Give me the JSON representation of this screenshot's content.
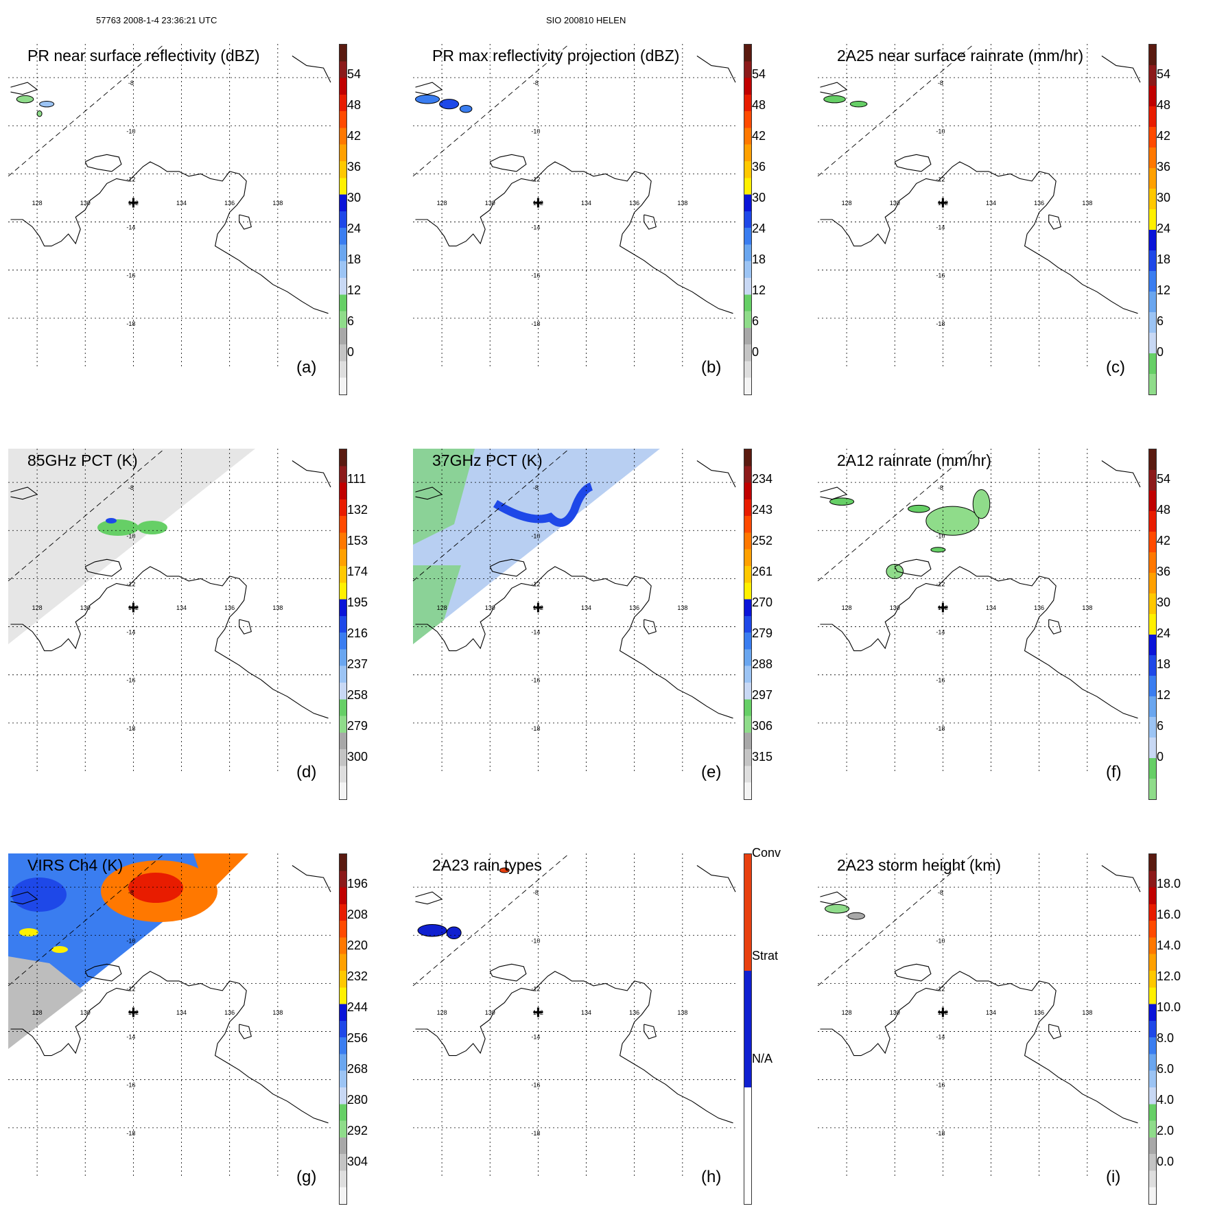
{
  "header": {
    "left": "57763 2008-1-4 23:36:21 UTC",
    "center": "SIO 200810 HELEN"
  },
  "map": {
    "lon_labels": [
      "128",
      "130",
      "132",
      "134",
      "136",
      "138"
    ],
    "lat_labels": [
      "-8",
      "-10",
      "-12",
      "-14",
      "-16",
      "-18"
    ]
  },
  "colormap_rainbow": [
    "#f4f4f4",
    "#dedede",
    "#c4c4c4",
    "#a8a8a8",
    "#8fdc8a",
    "#66cf66",
    "#c8d8f4",
    "#9cc4f4",
    "#6aa6ef",
    "#3a7df0",
    "#1e48e8",
    "#0a14d8",
    "#fff000",
    "#ffc800",
    "#ffa000",
    "#ff7800",
    "#ff4a00",
    "#e81c00",
    "#c00000",
    "#8c1a1a",
    "#5a1a10"
  ],
  "colormap_rain": [
    "#8fdc8a",
    "#66cf66",
    "#c8d8f4",
    "#9cc4f4",
    "#6aa6ef",
    "#3a7df0",
    "#1e48e8",
    "#0a14d8",
    "#fff000",
    "#ffc800",
    "#ffa000",
    "#ff7800",
    "#ff4a00",
    "#e81c00",
    "#c00000",
    "#8c1a1a",
    "#5a1a10"
  ],
  "colormap_types": [
    "#ffffff",
    "#1020d0",
    "#e84010"
  ],
  "panels": [
    {
      "title": "PR near surface reflectivity (dBZ)",
      "letter": "(a)",
      "cmap": "rainbow",
      "ticks": [
        "54",
        "48",
        "42",
        "36",
        "30",
        "24",
        "18",
        "12",
        "6",
        "0"
      ],
      "chart_data": {
        "type": "heatmap",
        "variable": "PR near surface reflectivity",
        "units": "dBZ",
        "scale": [
          0,
          60
        ],
        "swath_edge": "diagonal dashed line from lon 127 lat -12 to lon 133 lat -7"
      }
    },
    {
      "title": "PR max reflectivity projection (dBZ)",
      "letter": "(b)",
      "cmap": "rainbow",
      "ticks": [
        "54",
        "48",
        "42",
        "36",
        "30",
        "24",
        "18",
        "12",
        "6",
        "0"
      ],
      "chart_data": {
        "type": "heatmap",
        "variable": "PR max reflectivity projection",
        "units": "dBZ",
        "scale": [
          0,
          60
        ]
      }
    },
    {
      "title": "2A25 near surface rainrate (mm/hr)",
      "letter": "(c)",
      "cmap": "rain",
      "ticks": [
        "54",
        "48",
        "42",
        "36",
        "30",
        "24",
        "18",
        "12",
        "6",
        "0"
      ],
      "chart_data": {
        "type": "heatmap",
        "variable": "2A25 near surface rainrate",
        "units": "mm/hr",
        "scale": [
          0,
          60
        ]
      }
    },
    {
      "title": "85GHz PCT (K)",
      "letter": "(d)",
      "cmap": "rainbow_rev",
      "ticks": [
        "111",
        "132",
        "153",
        "174",
        "195",
        "216",
        "237",
        "258",
        "279",
        "300"
      ],
      "chart_data": {
        "type": "heatmap",
        "variable": "85GHz PCT",
        "units": "K",
        "scale": [
          90,
          300
        ]
      }
    },
    {
      "title": "37GHz PCT (K)",
      "letter": "(e)",
      "cmap": "rainbow_rev",
      "ticks": [
        "234",
        "243",
        "252",
        "261",
        "270",
        "279",
        "288",
        "297",
        "306",
        "315"
      ],
      "chart_data": {
        "type": "heatmap",
        "variable": "37GHz PCT",
        "units": "K",
        "scale": [
          225,
          315
        ]
      }
    },
    {
      "title": "2A12 rainrate (mm/hr)",
      "letter": "(f)",
      "cmap": "rain",
      "ticks": [
        "54",
        "48",
        "42",
        "36",
        "30",
        "24",
        "18",
        "12",
        "6",
        "0"
      ],
      "chart_data": {
        "type": "heatmap",
        "variable": "2A12 rainrate",
        "units": "mm/hr",
        "scale": [
          0,
          60
        ]
      }
    },
    {
      "title": "VIRS Ch4 (K)",
      "letter": "(g)",
      "cmap": "rainbow_rev",
      "ticks": [
        "196",
        "208",
        "220",
        "232",
        "244",
        "256",
        "268",
        "280",
        "292",
        "304"
      ],
      "chart_data": {
        "type": "heatmap",
        "variable": "VIRS Ch4 brightness temperature",
        "units": "K",
        "scale": [
          184,
          304
        ]
      }
    },
    {
      "title": "2A23 rain types",
      "letter": "(h)",
      "cmap": "types",
      "ticks": [
        "Conv",
        "Strat",
        "N/A"
      ],
      "chart_data": {
        "type": "heatmap",
        "variable": "2A23 rain types",
        "categories": [
          "N/A",
          "Strat",
          "Conv"
        ]
      }
    },
    {
      "title": "2A23 storm height (km)",
      "letter": "(i)",
      "cmap": "rainbow",
      "ticks": [
        "18.0",
        "16.0",
        "14.0",
        "12.0",
        "10.0",
        "8.0",
        "6.0",
        "4.0",
        "2.0",
        "0.0"
      ],
      "chart_data": {
        "type": "heatmap",
        "variable": "2A23 storm height",
        "units": "km",
        "scale": [
          0,
          20
        ]
      }
    }
  ]
}
